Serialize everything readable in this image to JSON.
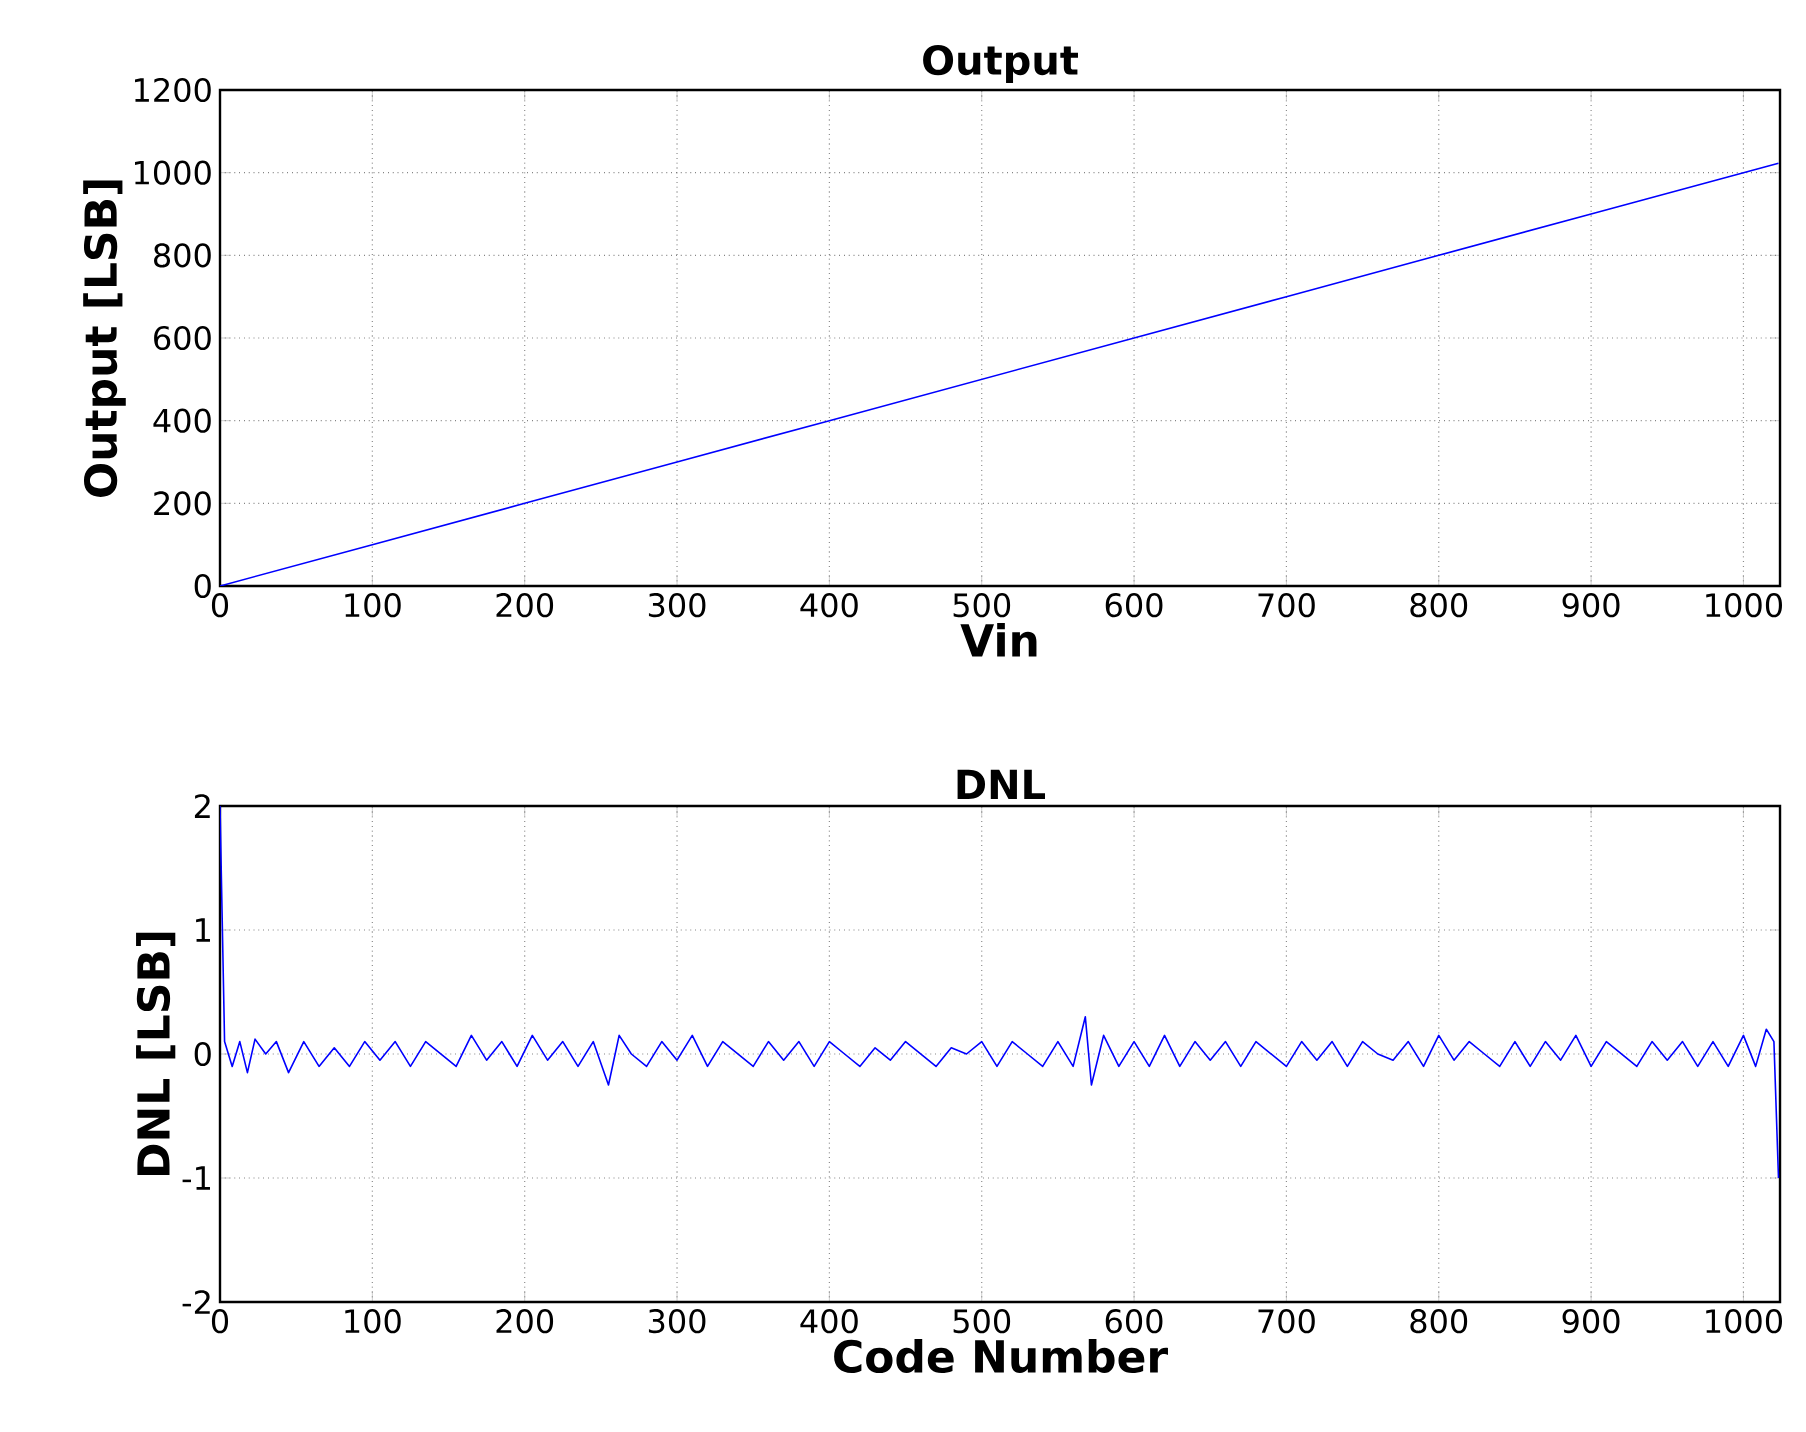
{
  "chart_data": [
    {
      "type": "line",
      "title": "Output",
      "xlabel": "Vin",
      "ylabel": "Output [LSB]",
      "xlim": [
        0,
        1024
      ],
      "ylim": [
        0,
        1200
      ],
      "xticks": [
        0,
        100,
        200,
        300,
        400,
        500,
        600,
        700,
        800,
        900,
        1000
      ],
      "yticks": [
        0,
        200,
        400,
        600,
        800,
        1000,
        1200
      ],
      "grid": true,
      "line_style": "solid",
      "series": [
        {
          "color": "#0000ff",
          "x": [
            0,
            100,
            200,
            300,
            400,
            500,
            600,
            700,
            800,
            900,
            1000,
            1023
          ],
          "values": [
            0,
            100,
            200,
            300,
            400,
            500,
            600,
            700,
            800,
            900,
            1000,
            1023
          ]
        }
      ]
    },
    {
      "type": "line",
      "title": "DNL",
      "xlabel": "Code Number",
      "ylabel": "DNL [LSB]",
      "xlim": [
        0,
        1024
      ],
      "ylim": [
        -2,
        2
      ],
      "xticks": [
        0,
        100,
        200,
        300,
        400,
        500,
        600,
        700,
        800,
        900,
        1000
      ],
      "yticks": [
        -2,
        -1,
        0,
        1,
        2
      ],
      "grid": true,
      "line_style": "solid",
      "series": [
        {
          "color": "#0000ff",
          "x": [
            0,
            3,
            8,
            13,
            18,
            23,
            30,
            37,
            45,
            55,
            65,
            75,
            85,
            95,
            105,
            115,
            125,
            135,
            145,
            155,
            165,
            175,
            185,
            195,
            205,
            215,
            225,
            235,
            245,
            255,
            262,
            270,
            280,
            290,
            300,
            310,
            320,
            330,
            340,
            350,
            360,
            370,
            380,
            390,
            400,
            410,
            420,
            430,
            440,
            450,
            460,
            470,
            480,
            490,
            500,
            510,
            520,
            530,
            540,
            550,
            560,
            568,
            572,
            580,
            590,
            600,
            610,
            620,
            630,
            640,
            650,
            660,
            670,
            680,
            690,
            700,
            710,
            720,
            730,
            740,
            750,
            760,
            770,
            780,
            790,
            800,
            810,
            820,
            830,
            840,
            850,
            860,
            870,
            880,
            890,
            900,
            910,
            920,
            930,
            940,
            950,
            960,
            970,
            980,
            990,
            1000,
            1008,
            1015,
            1020,
            1023
          ],
          "values": [
            2,
            0.1,
            -0.1,
            0.1,
            -0.15,
            0.12,
            0,
            0.1,
            -0.15,
            0.1,
            -0.1,
            0.05,
            -0.1,
            0.1,
            -0.05,
            0.1,
            -0.1,
            0.1,
            0,
            -0.1,
            0.15,
            -0.05,
            0.1,
            -0.1,
            0.15,
            -0.05,
            0.1,
            -0.1,
            0.1,
            -0.25,
            0.15,
            0,
            -0.1,
            0.1,
            -0.05,
            0.15,
            -0.1,
            0.1,
            0,
            -0.1,
            0.1,
            -0.05,
            0.1,
            -0.1,
            0.1,
            0,
            -0.1,
            0.05,
            -0.05,
            0.1,
            0,
            -0.1,
            0.05,
            0,
            0.1,
            -0.1,
            0.1,
            0,
            -0.1,
            0.1,
            -0.1,
            0.3,
            -0.25,
            0.15,
            -0.1,
            0.1,
            -0.1,
            0.15,
            -0.1,
            0.1,
            -0.05,
            0.1,
            -0.1,
            0.1,
            0,
            -0.1,
            0.1,
            -0.05,
            0.1,
            -0.1,
            0.1,
            0,
            -0.05,
            0.1,
            -0.1,
            0.15,
            -0.05,
            0.1,
            0,
            -0.1,
            0.1,
            -0.1,
            0.1,
            -0.05,
            0.15,
            -0.1,
            0.1,
            0,
            -0.1,
            0.1,
            -0.05,
            0.1,
            -0.1,
            0.1,
            -0.1,
            0.15,
            -0.1,
            0.2,
            0.1,
            -1
          ]
        }
      ]
    }
  ]
}
